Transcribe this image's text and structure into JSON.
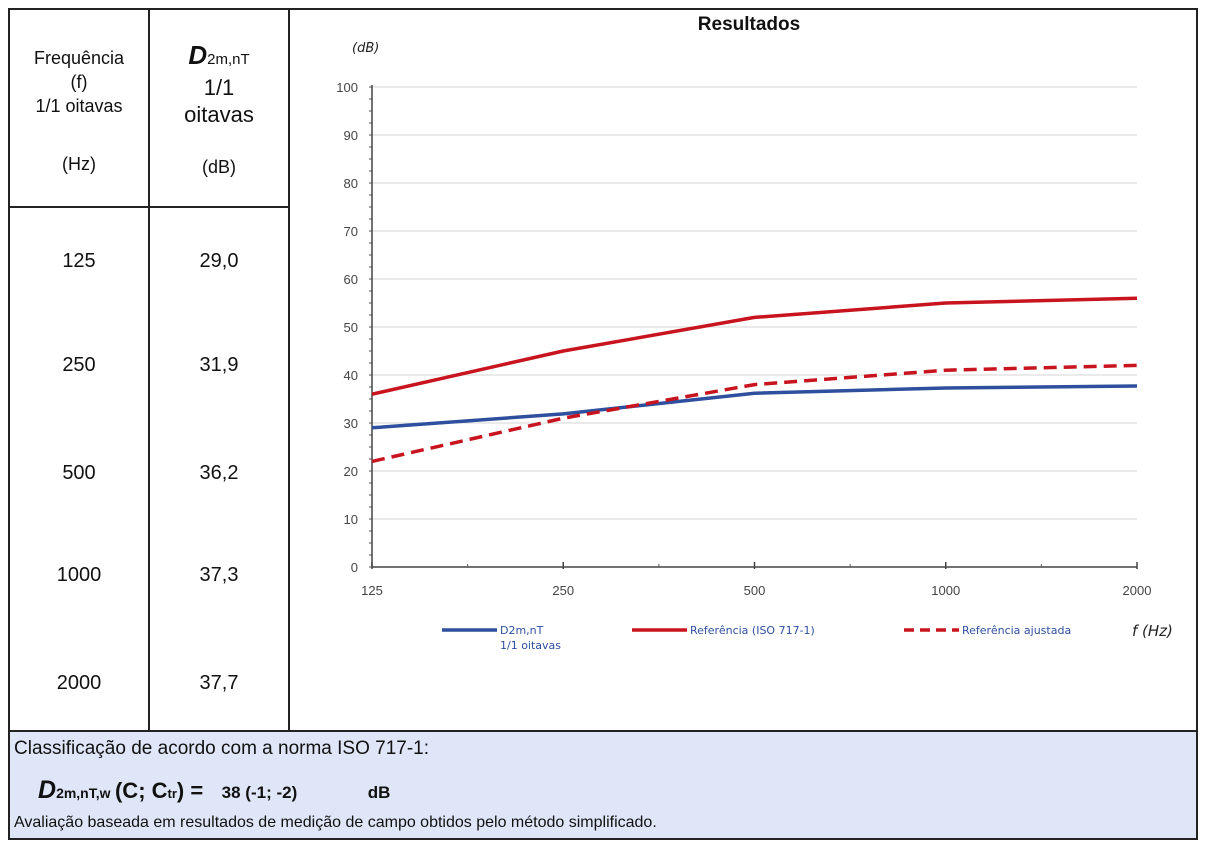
{
  "table": {
    "col1_header": [
      "Frequência",
      "(f)",
      "1/1 oitavas",
      "(Hz)"
    ],
    "col2_header": {
      "symbol": "D",
      "subscript": "2m,nT",
      "line2": "1/1",
      "line3": "oitavas",
      "unit": "(dB)"
    },
    "rows": [
      {
        "freq": "125",
        "value": "29,0"
      },
      {
        "freq": "250",
        "value": "31,9"
      },
      {
        "freq": "500",
        "value": "36,2"
      },
      {
        "freq": "1000",
        "value": "37,3"
      },
      {
        "freq": "2000",
        "value": "37,7"
      }
    ]
  },
  "chart_data": {
    "type": "line",
    "title": "Resultados",
    "ylabel": "(dB)",
    "xlabel": "f (Hz)",
    "categories": [
      "125",
      "250",
      "500",
      "1000",
      "2000"
    ],
    "ylim": [
      0,
      100
    ],
    "yticks": [
      0,
      10,
      20,
      30,
      40,
      50,
      60,
      70,
      80,
      90,
      100
    ],
    "grid": true,
    "legend_position": "bottom",
    "series": [
      {
        "name": "D2m,nT",
        "name_line2": "1/1 oitavas",
        "values": [
          29.0,
          31.9,
          36.2,
          37.3,
          37.7
        ],
        "color": "#2e4f9e",
        "style": "solid"
      },
      {
        "name": "Referência (ISO 717-1)",
        "values": [
          36,
          45,
          52,
          55,
          56
        ],
        "color": "#c8141e",
        "style": "solid"
      },
      {
        "name": "Referência ajustada",
        "values": [
          22,
          31,
          38,
          41,
          42
        ],
        "color": "#c8141e",
        "style": "dashed"
      }
    ]
  },
  "classification": {
    "line1": "Classificação de acordo com a norma ISO 717-1:",
    "symbol": "D",
    "subscript": "2m,nT,w",
    "paren_open": "(C; C",
    "ctr_sub": "tr",
    "paren_close": ") =",
    "value": "38 (-1; -2)",
    "unit": "dB",
    "note": "Avaliação baseada em resultados de medição de campo obtidos pelo método simplificado."
  }
}
